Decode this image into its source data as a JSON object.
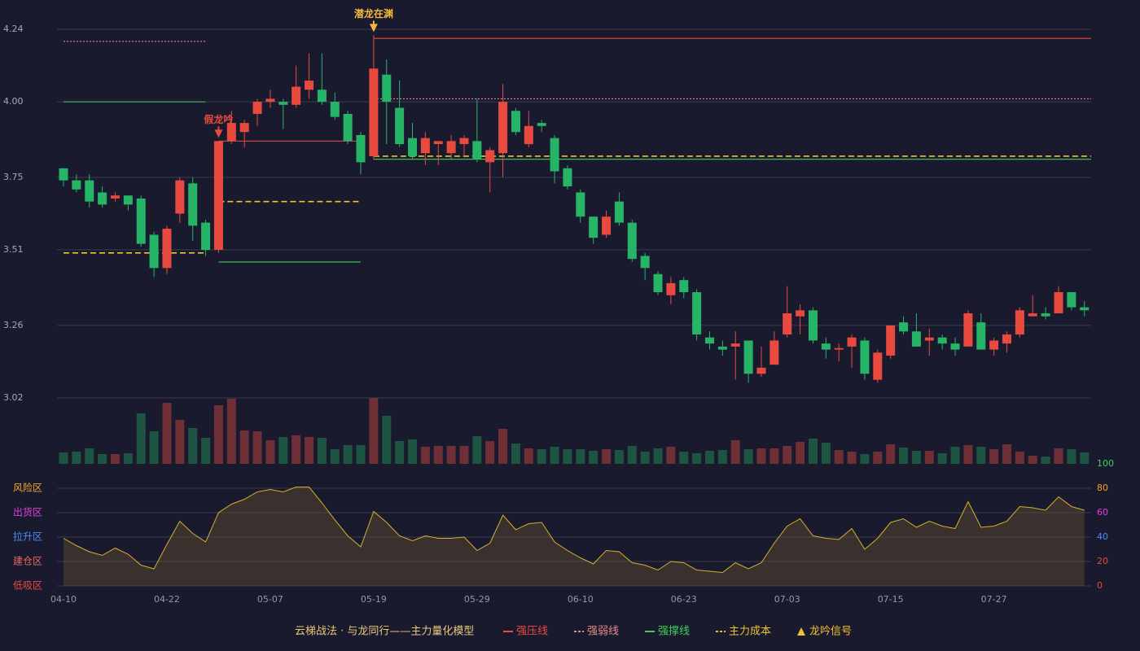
{
  "chart_data": {
    "type": "candlestick",
    "categories": [
      "04-10",
      null,
      null,
      null,
      null,
      null,
      null,
      null,
      "04-22",
      null,
      null,
      null,
      null,
      null,
      null,
      null,
      "05-07",
      null,
      null,
      null,
      null,
      null,
      null,
      null,
      "05-19",
      null,
      null,
      null,
      null,
      null,
      null,
      null,
      "05-29",
      null,
      null,
      null,
      null,
      null,
      null,
      null,
      "06-10",
      null,
      null,
      null,
      null,
      null,
      null,
      null,
      "06-23",
      null,
      null,
      null,
      null,
      null,
      null,
      null,
      "07-03",
      null,
      null,
      null,
      null,
      null,
      null,
      null,
      "07-15",
      null,
      null,
      null,
      null,
      null,
      null,
      null,
      "07-27",
      null,
      null,
      null,
      null,
      null,
      null,
      null
    ],
    "open": [
      3.78,
      3.74,
      3.74,
      3.7,
      3.68,
      3.69,
      3.68,
      3.56,
      3.45,
      3.63,
      3.73,
      3.6,
      3.51,
      3.87,
      3.9,
      3.96,
      4.0,
      4.0,
      3.99,
      4.04,
      4.04,
      4.0,
      3.96,
      3.89,
      3.82,
      4.09,
      3.98,
      3.88,
      3.83,
      3.86,
      3.83,
      3.86,
      3.87,
      3.8,
      3.83,
      3.97,
      3.86,
      3.93,
      3.88,
      3.78,
      3.7,
      3.62,
      3.56,
      3.67,
      3.6,
      3.49,
      3.43,
      3.36,
      3.41,
      3.37,
      3.22,
      3.19,
      3.19,
      3.21,
      3.1,
      3.13,
      3.23,
      3.29,
      3.31,
      3.2,
      3.18,
      3.19,
      3.21,
      3.08,
      3.16,
      3.27,
      3.24,
      3.21,
      3.22,
      3.2,
      3.19,
      3.27,
      3.18,
      3.2,
      3.23,
      3.29,
      3.3,
      3.3,
      3.37,
      3.32
    ],
    "high": [
      3.78,
      3.76,
      3.76,
      3.72,
      3.7,
      3.69,
      3.69,
      3.57,
      3.59,
      3.75,
      3.75,
      3.61,
      3.87,
      3.97,
      3.94,
      4.01,
      4.04,
      4.01,
      4.12,
      4.16,
      4.16,
      4.03,
      3.97,
      3.9,
      4.22,
      4.14,
      4.07,
      3.93,
      3.9,
      3.87,
      3.89,
      3.89,
      4.01,
      3.85,
      4.06,
      3.98,
      3.97,
      3.94,
      3.89,
      3.79,
      3.71,
      3.62,
      3.64,
      3.7,
      3.61,
      3.5,
      3.44,
      3.42,
      3.42,
      3.38,
      3.24,
      3.21,
      3.24,
      3.21,
      3.19,
      3.24,
      3.39,
      3.33,
      3.32,
      3.22,
      3.2,
      3.23,
      3.22,
      3.18,
      3.26,
      3.29,
      3.3,
      3.25,
      3.23,
      3.22,
      3.31,
      3.3,
      3.22,
      3.24,
      3.32,
      3.36,
      3.32,
      3.39,
      3.37,
      3.34
    ],
    "low": [
      3.72,
      3.7,
      3.65,
      3.65,
      3.67,
      3.64,
      3.52,
      3.42,
      3.43,
      3.6,
      3.54,
      3.49,
      3.5,
      3.86,
      3.85,
      3.92,
      3.98,
      3.91,
      3.98,
      4.01,
      3.99,
      3.94,
      3.86,
      3.76,
      3.81,
      3.86,
      3.85,
      3.81,
      3.79,
      3.79,
      3.81,
      3.82,
      3.8,
      3.7,
      3.75,
      3.89,
      3.85,
      3.9,
      3.73,
      3.71,
      3.6,
      3.53,
      3.55,
      3.59,
      3.47,
      3.41,
      3.36,
      3.33,
      3.35,
      3.21,
      3.18,
      3.16,
      3.08,
      3.07,
      3.09,
      3.13,
      3.22,
      3.23,
      3.2,
      3.15,
      3.14,
      3.12,
      3.08,
      3.07,
      3.15,
      3.23,
      3.19,
      3.16,
      3.18,
      3.16,
      3.19,
      3.18,
      3.16,
      3.17,
      3.22,
      3.29,
      3.28,
      3.3,
      3.31,
      3.29
    ],
    "close": [
      3.74,
      3.71,
      3.67,
      3.66,
      3.69,
      3.66,
      3.53,
      3.45,
      3.58,
      3.74,
      3.59,
      3.51,
      3.87,
      3.93,
      3.93,
      4.0,
      4.01,
      3.99,
      4.05,
      4.07,
      4.0,
      3.95,
      3.87,
      3.8,
      4.11,
      4.0,
      3.86,
      3.82,
      3.88,
      3.87,
      3.87,
      3.88,
      3.81,
      3.84,
      4.0,
      3.9,
      3.92,
      3.92,
      3.77,
      3.72,
      3.62,
      3.55,
      3.62,
      3.6,
      3.48,
      3.45,
      3.37,
      3.4,
      3.37,
      3.23,
      3.2,
      3.18,
      3.2,
      3.1,
      3.12,
      3.21,
      3.3,
      3.31,
      3.21,
      3.18,
      3.185,
      3.22,
      3.1,
      3.17,
      3.26,
      3.24,
      3.19,
      3.22,
      3.2,
      3.18,
      3.3,
      3.18,
      3.21,
      3.23,
      3.31,
      3.3,
      3.29,
      3.37,
      3.32,
      3.31
    ],
    "volume": [
      14,
      15,
      19,
      12,
      12,
      13,
      62,
      40,
      75,
      54,
      44,
      32,
      72,
      80,
      41,
      40,
      29,
      33,
      35,
      33,
      32,
      18,
      23,
      23,
      81,
      59,
      28,
      30,
      21,
      22,
      22,
      22,
      34,
      28,
      43,
      25,
      19,
      18,
      21,
      18,
      18,
      16,
      18,
      17,
      22,
      15,
      19,
      21,
      15,
      13,
      16,
      17,
      29,
      18,
      19,
      19,
      22,
      27,
      31,
      26,
      17,
      15,
      12,
      15,
      24,
      20,
      16,
      16,
      13,
      21,
      23,
      21,
      18,
      24,
      15,
      10,
      9,
      19,
      18,
      14
    ],
    "up_color": "#e84a3f",
    "down_color": "#26b567",
    "volume_up_color": "#6e2f37",
    "volume_down_color": "#1e5542",
    "ylim": [
      3.02,
      4.24
    ],
    "yticks": [
      3.02,
      3.26,
      3.51,
      3.75,
      {
        "value": 4,
        "label": "4.00"
      },
      4.24
    ],
    "grid": true,
    "levels": [
      {
        "name": "强压线",
        "color": "#e84a3f",
        "style": "solid",
        "segments": [
          {
            "start": 12,
            "end": 23,
            "value": 3.87
          },
          {
            "start": 24,
            "end": 79,
            "value": 4.21
          }
        ]
      },
      {
        "name": "强弱线",
        "color": "#e88a8a",
        "style": "dotted",
        "segments": [
          {
            "start": 0,
            "end": 11,
            "value": 4.2
          },
          {
            "start": 24,
            "end": 79,
            "value": 4.01
          }
        ]
      },
      {
        "name": "强撑线",
        "color": "#3ecf5a",
        "style": "solid",
        "segments": [
          {
            "start": 0,
            "end": 11,
            "value": 4.0
          },
          {
            "start": 12,
            "end": 23,
            "value": 3.47
          },
          {
            "start": 24,
            "end": 79,
            "value": 3.81
          }
        ]
      },
      {
        "name": "主力成本",
        "color": "#f2c12e",
        "style": "dashed",
        "segments": [
          {
            "start": 0,
            "end": 11,
            "value": 3.5
          },
          {
            "start": 12,
            "end": 23,
            "value": 3.67
          },
          {
            "start": 24,
            "end": 79,
            "value": 3.82
          }
        ]
      }
    ],
    "signals": [
      {
        "index": 12,
        "label": "假龙吟",
        "color": "#e84a3f"
      },
      {
        "index": 24,
        "label": "潜龙在渊",
        "color": "#f5b83d"
      }
    ],
    "signal_legend": "龙吟信号",
    "legend_title": "云梯战法 · 与龙同行——主力量化模型",
    "oscillator": {
      "values": [
        39,
        33,
        28,
        25,
        31,
        26,
        17,
        14,
        34,
        53,
        43,
        36,
        60,
        67,
        71,
        77,
        79,
        77,
        81,
        81,
        68,
        54,
        41,
        32,
        61,
        52,
        41,
        37,
        41,
        39,
        39,
        40,
        29,
        35,
        58,
        46,
        51,
        52,
        36,
        29,
        23,
        18,
        29,
        28,
        19,
        17,
        13,
        20,
        19,
        13,
        12,
        11,
        19,
        14,
        19,
        35,
        49,
        55,
        41,
        39,
        38,
        47,
        30,
        39,
        52,
        55,
        48,
        53,
        49,
        47,
        69,
        48,
        49,
        53,
        65,
        64,
        62,
        73,
        65,
        62
      ],
      "line_color": "#d4b12a",
      "fill_color": "rgba(120,95,50,0.35)",
      "ylim": [
        0,
        100
      ],
      "yticks": [
        0,
        20,
        40,
        60,
        80,
        100
      ],
      "ytick_colors": [
        "#e84a3f",
        "#e84a3f",
        "#4a8cff",
        "#e040e0",
        "#f5a623",
        "#3ecf5a"
      ],
      "zones": [
        {
          "label": "风险区",
          "value": 80,
          "color": "#f5a623"
        },
        {
          "label": "出货区",
          "value": 60,
          "color": "#e040e0"
        },
        {
          "label": "拉升区",
          "value": 40,
          "color": "#4a8cff"
        },
        {
          "label": "建仓区",
          "value": 20,
          "color": "#e86a5f"
        },
        {
          "label": "低吸区",
          "value": 0,
          "color": "#e84a3f"
        }
      ]
    }
  }
}
